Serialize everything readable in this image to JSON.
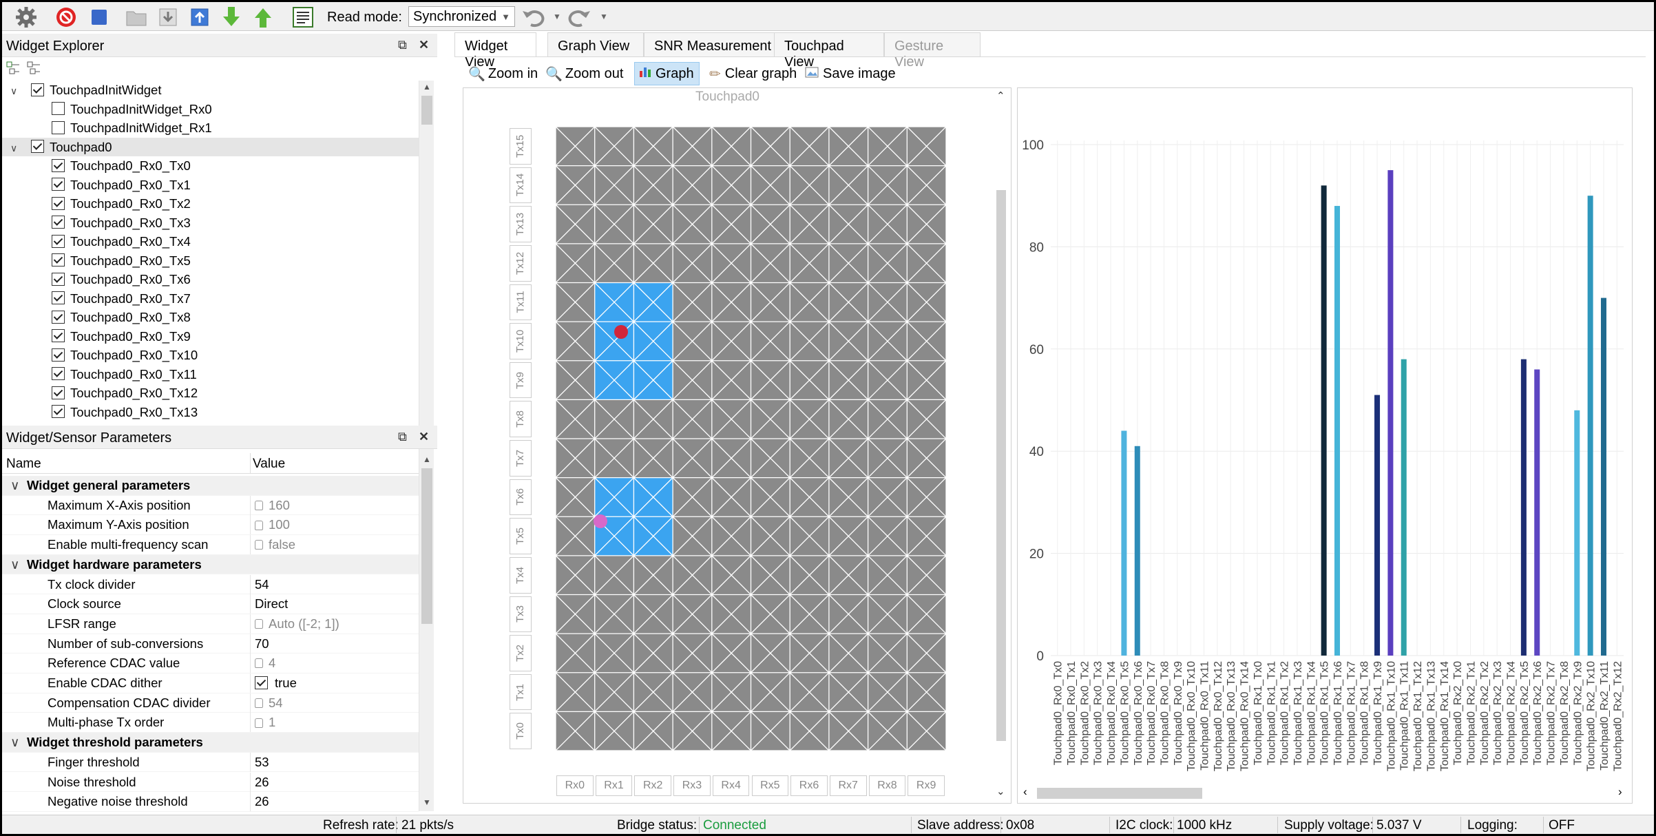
{
  "toolbar": {
    "read_mode_label": "Read mode:",
    "read_mode_value": "Synchronized"
  },
  "widget_explorer": {
    "title": "Widget Explorer",
    "items": [
      {
        "label": "TouchpadInitWidget",
        "checked": true,
        "level": 0,
        "expanded": true
      },
      {
        "label": "TouchpadInitWidget_Rx0",
        "checked": false,
        "level": 1
      },
      {
        "label": "TouchpadInitWidget_Rx1",
        "checked": false,
        "level": 1
      },
      {
        "label": "Touchpad0",
        "checked": true,
        "level": 0,
        "expanded": true,
        "selected": true
      },
      {
        "label": "Touchpad0_Rx0_Tx0",
        "checked": true,
        "level": 1
      },
      {
        "label": "Touchpad0_Rx0_Tx1",
        "checked": true,
        "level": 1
      },
      {
        "label": "Touchpad0_Rx0_Tx2",
        "checked": true,
        "level": 1
      },
      {
        "label": "Touchpad0_Rx0_Tx3",
        "checked": true,
        "level": 1
      },
      {
        "label": "Touchpad0_Rx0_Tx4",
        "checked": true,
        "level": 1
      },
      {
        "label": "Touchpad0_Rx0_Tx5",
        "checked": true,
        "level": 1
      },
      {
        "label": "Touchpad0_Rx0_Tx6",
        "checked": true,
        "level": 1
      },
      {
        "label": "Touchpad0_Rx0_Tx7",
        "checked": true,
        "level": 1
      },
      {
        "label": "Touchpad0_Rx0_Tx8",
        "checked": true,
        "level": 1
      },
      {
        "label": "Touchpad0_Rx0_Tx9",
        "checked": true,
        "level": 1
      },
      {
        "label": "Touchpad0_Rx0_Tx10",
        "checked": true,
        "level": 1
      },
      {
        "label": "Touchpad0_Rx0_Tx11",
        "checked": true,
        "level": 1
      },
      {
        "label": "Touchpad0_Rx0_Tx12",
        "checked": true,
        "level": 1
      },
      {
        "label": "Touchpad0_Rx0_Tx13",
        "checked": true,
        "level": 1
      }
    ]
  },
  "params": {
    "title": "Widget/Sensor Parameters",
    "col_name": "Name",
    "col_value": "Value",
    "rows": [
      {
        "group": true,
        "name": "Widget general parameters"
      },
      {
        "name": "Maximum X-Axis position",
        "value": "160",
        "ro": true
      },
      {
        "name": "Maximum Y-Axis position",
        "value": "100",
        "ro": true
      },
      {
        "name": "Enable multi-frequency scan",
        "value": "false",
        "ro": true
      },
      {
        "group": true,
        "name": "Widget hardware parameters"
      },
      {
        "name": "Tx clock divider",
        "value": "54"
      },
      {
        "name": "Clock source",
        "value": "Direct"
      },
      {
        "name": "LFSR range",
        "value": "Auto ([-2; 1])",
        "ro": true
      },
      {
        "name": "Number of sub-conversions",
        "value": "70"
      },
      {
        "name": "Reference CDAC value",
        "value": "4",
        "ro": true
      },
      {
        "name": "Enable CDAC dither",
        "value": "true",
        "check": true
      },
      {
        "name": "Compensation CDAC divider",
        "value": "54",
        "ro": true
      },
      {
        "name": "Multi-phase Tx order",
        "value": "1",
        "ro": true
      },
      {
        "group": true,
        "name": "Widget threshold parameters"
      },
      {
        "name": "Finger threshold",
        "value": "53"
      },
      {
        "name": "Noise threshold",
        "value": "26"
      },
      {
        "name": "Negative noise threshold",
        "value": "26"
      }
    ]
  },
  "tabs": [
    "Widget View",
    "Graph View",
    "SNR Measurement",
    "Touchpad View",
    "Gesture View"
  ],
  "actions": {
    "zoom_in": "Zoom in",
    "zoom_out": "Zoom out",
    "graph": "Graph",
    "clear_graph": "Clear graph",
    "save_image": "Save image"
  },
  "touchpad": {
    "title": "Touchpad0",
    "tx_labels": [
      "Tx15",
      "Tx14",
      "Tx13",
      "Tx12",
      "Tx11",
      "Tx10",
      "Tx9",
      "Tx8",
      "Tx7",
      "Tx6",
      "Tx5",
      "Tx4",
      "Tx3",
      "Tx2",
      "Tx1",
      "Tx0"
    ],
    "rx_labels": [
      "Rx0",
      "Rx1",
      "Rx2",
      "Rx3",
      "Rx4",
      "Rx5",
      "Rx6",
      "Rx7",
      "Rx8",
      "Rx9"
    ],
    "active_regions": [
      {
        "rx_from": 1,
        "rx_to": 2,
        "tx_from": 11,
        "tx_to": 9
      },
      {
        "rx_from": 1,
        "rx_to": 2,
        "tx_from": 6,
        "tx_to": 5
      }
    ],
    "touches": [
      {
        "color": "#d1263b"
      },
      {
        "color": "#d868c9"
      }
    ],
    "colors": {
      "cell": "#8a8a8a",
      "active": "#3ba4f0",
      "line": "#ffffff"
    }
  },
  "chart_data": {
    "type": "bar",
    "ylim": [
      0,
      100
    ],
    "yticks": [
      0,
      20,
      40,
      60,
      80,
      100
    ],
    "grid": true,
    "categories": [
      "Touchpad0_Rx0_Tx0",
      "Touchpad0_Rx0_Tx1",
      "Touchpad0_Rx0_Tx2",
      "Touchpad0_Rx0_Tx3",
      "Touchpad0_Rx0_Tx4",
      "Touchpad0_Rx0_Tx5",
      "Touchpad0_Rx0_Tx6",
      "Touchpad0_Rx0_Tx7",
      "Touchpad0_Rx0_Tx8",
      "Touchpad0_Rx0_Tx9",
      "Touchpad0_Rx0_Tx10",
      "Touchpad0_Rx0_Tx11",
      "Touchpad0_Rx0_Tx12",
      "Touchpad0_Rx0_Tx13",
      "Touchpad0_Rx0_Tx14",
      "Touchpad0_Rx1_Tx0",
      "Touchpad0_Rx1_Tx1",
      "Touchpad0_Rx1_Tx2",
      "Touchpad0_Rx1_Tx3",
      "Touchpad0_Rx1_Tx4",
      "Touchpad0_Rx1_Tx5",
      "Touchpad0_Rx1_Tx6",
      "Touchpad0_Rx1_Tx7",
      "Touchpad0_Rx1_Tx8",
      "Touchpad0_Rx1_Tx9",
      "Touchpad0_Rx1_Tx10",
      "Touchpad0_Rx1_Tx11",
      "Touchpad0_Rx1_Tx12",
      "Touchpad0_Rx1_Tx13",
      "Touchpad0_Rx1_Tx14",
      "Touchpad0_Rx2_Tx0",
      "Touchpad0_Rx2_Tx1",
      "Touchpad0_Rx2_Tx2",
      "Touchpad0_Rx2_Tx3",
      "Touchpad0_Rx2_Tx4",
      "Touchpad0_Rx2_Tx5",
      "Touchpad0_Rx2_Tx6",
      "Touchpad0_Rx2_Tx7",
      "Touchpad0_Rx2_Tx8",
      "Touchpad0_Rx2_Tx9",
      "Touchpad0_Rx2_Tx10",
      "Touchpad0_Rx2_Tx11",
      "Touchpad0_Rx2_Tx12"
    ],
    "values": [
      0,
      0,
      0,
      0,
      0,
      44,
      41,
      0,
      0,
      0,
      0,
      0,
      0,
      0,
      0,
      0,
      0,
      0,
      0,
      0,
      92,
      88,
      0,
      0,
      51,
      95,
      58,
      0,
      0,
      0,
      0,
      0,
      0,
      0,
      0,
      58,
      56,
      0,
      0,
      48,
      90,
      70,
      0
    ],
    "bar_colors": [
      "",
      "",
      "",
      "",
      "",
      "#4fb3de",
      "#2e8cb8",
      "",
      "",
      "",
      "",
      "",
      "",
      "",
      "",
      "",
      "",
      "",
      "",
      "",
      "#10283a",
      "#45b4d8",
      "",
      "",
      "#1b2f78",
      "#5a3fbf",
      "#2fa2a8",
      "",
      "",
      "",
      "",
      "",
      "",
      "",
      "",
      "#1d2e72",
      "#5d46c2",
      "",
      "",
      "#4fb8de",
      "#2f98bd",
      "#206a8f",
      ""
    ]
  },
  "status": {
    "refresh_label": "Refresh rate:",
    "refresh_value": "21 pkts/s",
    "bridge_label": "Bridge status:",
    "bridge_value": "Connected",
    "slave_label": "Slave address:",
    "slave_value": "0x08",
    "i2c_label": "I2C clock:",
    "i2c_value": "1000 kHz",
    "supply_label": "Supply voltage:",
    "supply_value": "5.037 V",
    "logging_label": "Logging:",
    "logging_value": "OFF",
    "connected_color": "#1a9c3e"
  }
}
